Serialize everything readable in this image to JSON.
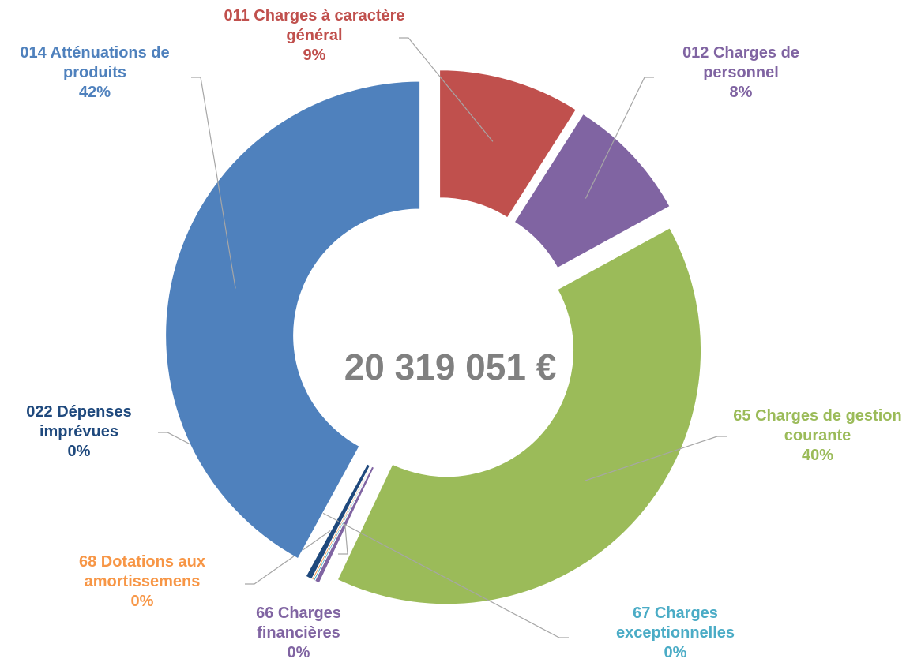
{
  "chart_data": {
    "type": "donut",
    "center_label": "20 319 051 €",
    "categories": [
      "011 Charges à caractère général",
      "012 Charges de personnel",
      "65 Charges de gestion courante",
      "66 Charges financières",
      "67 Charges exceptionnelles",
      "68 Dotations aux amortissemens",
      "022 Dépenses imprévues",
      "014 Atténuations de produits"
    ],
    "values": [
      9,
      8,
      40,
      0.3,
      0.1,
      0.1,
      0.4,
      42
    ],
    "value_labels": [
      "9%",
      "8%",
      "40%",
      "0%",
      "0%",
      "0%",
      "0%",
      "42%"
    ],
    "colors": [
      "#c0504d",
      "#8064a2",
      "#9bbb59",
      "#8064a2",
      "#4bacc6",
      "#f79646",
      "#1f497d",
      "#4f81bd"
    ]
  }
}
